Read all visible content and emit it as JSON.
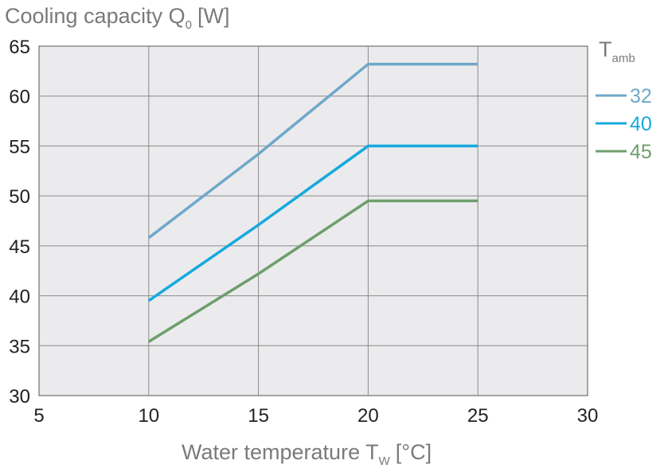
{
  "chart_data": {
    "type": "line",
    "title": "Cooling capacity Q",
    "title_sub": "0",
    "title_unit": "[W]",
    "xlabel": "Water temperature T",
    "xlabel_sub": "W",
    "xlabel_unit": "[°C]",
    "xlim": [
      5,
      30
    ],
    "ylim": [
      30,
      65
    ],
    "xticks": [
      5,
      10,
      15,
      20,
      25,
      30
    ],
    "yticks": [
      30,
      35,
      40,
      45,
      50,
      55,
      60,
      65
    ],
    "grid": true,
    "legend": {
      "title": "T",
      "title_sub": "amb",
      "placement": "right"
    },
    "series": [
      {
        "name": "32",
        "color": "#6fa8c9",
        "x": [
          10,
          15,
          20,
          25
        ],
        "y": [
          45.8,
          54.2,
          63.2,
          63.2
        ]
      },
      {
        "name": "40",
        "color": "#16a9de",
        "x": [
          10,
          15,
          20,
          25
        ],
        "y": [
          39.5,
          47.1,
          55.0,
          55.0
        ]
      },
      {
        "name": "45",
        "color": "#6e9e6c",
        "x": [
          10,
          15,
          20,
          25
        ],
        "y": [
          35.4,
          42.2,
          49.5,
          49.5
        ]
      }
    ]
  }
}
